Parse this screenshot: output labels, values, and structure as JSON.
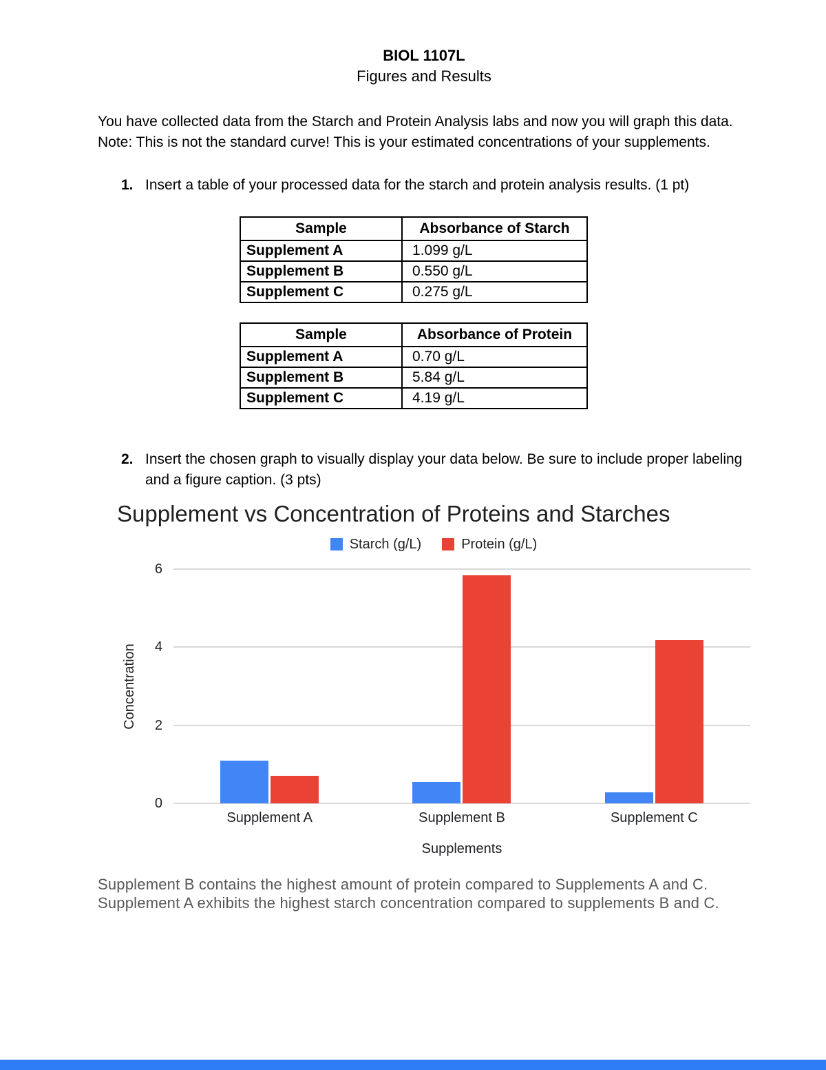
{
  "page": {
    "title": "BIOL 1107L",
    "subtitle": "Figures and Results",
    "intro": "You have collected data from the Starch and Protein Analysis labs and now you will graph this data. Note: This is not the standard curve! This is your estimated concentrations of your supplements.",
    "item1_number": "1.",
    "item1_text": "Insert a table of your processed data for the starch and protein analysis results. (1 pt)",
    "item2_number": "2.",
    "item2_text": "Insert the chosen graph to visually display your data below. Be sure to include proper labeling and a figure caption. (3 pts)",
    "caption": "Supplement B contains the highest amount of protein compared to Supplements A and C. Supplement A exhibits the highest starch concentration compared to supplements B and C."
  },
  "tables": [
    {
      "headers": [
        "Sample",
        "Absorbance of Starch"
      ],
      "rows": [
        [
          "Supplement A",
          "1.099 g/L"
        ],
        [
          "Supplement B",
          "0.550 g/L"
        ],
        [
          "Supplement C",
          "0.275 g/L"
        ]
      ]
    },
    {
      "headers": [
        "Sample",
        "Absorbance of Protein"
      ],
      "rows": [
        [
          "Supplement A",
          "0.70 g/L"
        ],
        [
          "Supplement B",
          "5.84 g/L"
        ],
        [
          "Supplement C",
          "4.19 g/L"
        ]
      ]
    }
  ],
  "chart_data": {
    "type": "bar",
    "title": "Supplement vs Concentration of Proteins and Starches",
    "categories": [
      "Supplement A",
      "Supplement B",
      "Supplement C"
    ],
    "series": [
      {
        "name": "Starch (g/L)",
        "color": "#4285F4",
        "values": [
          1.099,
          0.55,
          0.275
        ]
      },
      {
        "name": "Protein (g/L)",
        "color": "#EA4335",
        "values": [
          0.7,
          5.84,
          4.19
        ]
      }
    ],
    "xlabel": "Supplements",
    "ylabel": "Concentration",
    "yticks": [
      0,
      2,
      4,
      6
    ],
    "ylim": [
      0,
      6
    ],
    "legend_position": "top",
    "grid": true
  },
  "colors": {
    "bottom_bar": "#2e7df6"
  }
}
